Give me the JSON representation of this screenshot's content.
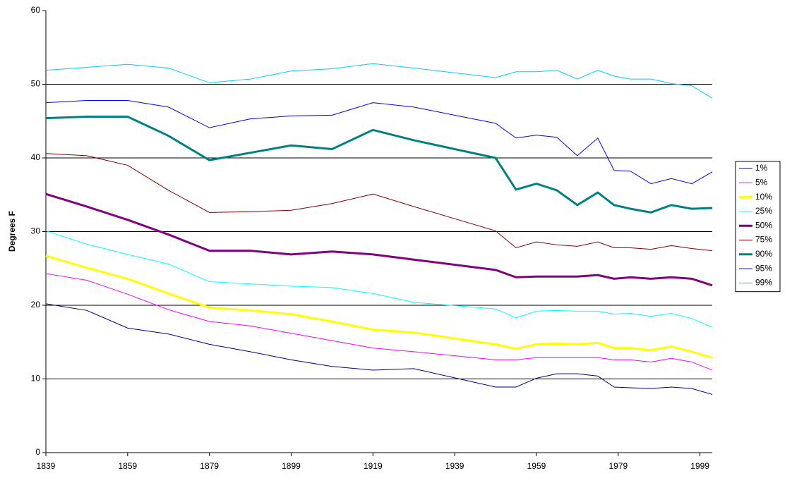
{
  "chart_data": {
    "type": "line",
    "y_label": "Degrees F",
    "x": [
      1839,
      1849,
      1859,
      1869,
      1879,
      1889,
      1899,
      1909,
      1919,
      1929,
      1949,
      1954,
      1959,
      1964,
      1969,
      1974,
      1978,
      1982,
      1987,
      1992,
      1997,
      2002
    ],
    "xlim": [
      1839,
      2002
    ],
    "xticks": [
      1839,
      1859,
      1879,
      1899,
      1919,
      1939,
      1959,
      1979,
      1999
    ],
    "ylim": [
      0,
      60
    ],
    "yticks": [
      0,
      10,
      20,
      30,
      40,
      50,
      60
    ],
    "grid": true,
    "legend": "right",
    "series": [
      {
        "name": "1%",
        "color": "#000080",
        "width": 1,
        "values": [
          20.2,
          19.3,
          16.9,
          16.1,
          14.7,
          13.7,
          12.6,
          11.7,
          11.2,
          11.4,
          8.9,
          8.9,
          10.1,
          10.7,
          10.7,
          10.4,
          8.9,
          8.8,
          8.7,
          8.9,
          8.7,
          7.9
        ]
      },
      {
        "name": "5%",
        "color": "#ff00ff",
        "width": 1,
        "values": [
          24.3,
          23.4,
          21.5,
          19.4,
          17.8,
          17.2,
          16.2,
          15.2,
          14.2,
          13.7,
          12.6,
          12.6,
          12.9,
          12.9,
          12.9,
          12.9,
          12.6,
          12.6,
          12.3,
          12.8,
          12.3,
          11.2
        ]
      },
      {
        "name": "10%",
        "color": "#ffff00",
        "width": 3,
        "values": [
          26.7,
          25.1,
          23.6,
          21.6,
          19.7,
          19.3,
          18.8,
          17.8,
          16.7,
          16.3,
          14.7,
          14.1,
          14.7,
          14.8,
          14.7,
          14.9,
          14.2,
          14.2,
          13.9,
          14.4,
          13.7,
          12.9
        ]
      },
      {
        "name": "25%",
        "color": "#00ffff",
        "width": 1,
        "values": [
          30.1,
          28.3,
          26.9,
          25.6,
          23.2,
          22.9,
          22.6,
          22.4,
          21.6,
          20.4,
          19.5,
          18.3,
          19.2,
          19.3,
          19.2,
          19.2,
          18.8,
          18.9,
          18.5,
          18.9,
          18.2,
          17.0
        ]
      },
      {
        "name": "50%",
        "color": "#800080",
        "width": 3,
        "values": [
          35.1,
          33.4,
          31.6,
          29.6,
          27.4,
          27.4,
          26.9,
          27.3,
          26.9,
          26.2,
          24.8,
          23.8,
          23.9,
          23.9,
          23.9,
          24.1,
          23.6,
          23.8,
          23.6,
          23.8,
          23.6,
          22.7
        ]
      },
      {
        "name": "75%",
        "color": "#800000",
        "width": 1,
        "values": [
          40.6,
          40.3,
          39.0,
          35.6,
          32.6,
          32.7,
          32.9,
          33.8,
          35.1,
          33.4,
          30.1,
          27.8,
          28.6,
          28.2,
          28.0,
          28.6,
          27.8,
          27.8,
          27.6,
          28.1,
          27.7,
          27.4
        ]
      },
      {
        "name": "90%",
        "color": "#008080",
        "width": 3,
        "values": [
          45.4,
          45.6,
          45.6,
          43.0,
          39.7,
          40.7,
          41.7,
          41.2,
          43.8,
          42.4,
          40.0,
          35.7,
          36.5,
          35.6,
          33.6,
          35.3,
          33.6,
          33.1,
          32.6,
          33.6,
          33.1,
          33.2
        ]
      },
      {
        "name": "95%",
        "color": "#0000ff",
        "width": 1,
        "values": [
          47.5,
          47.8,
          47.8,
          46.9,
          44.1,
          45.3,
          45.7,
          45.8,
          47.5,
          46.9,
          44.7,
          42.7,
          43.1,
          42.8,
          40.3,
          42.7,
          38.3,
          38.2,
          36.5,
          37.2,
          36.5,
          38.1
        ]
      },
      {
        "name": "99%",
        "color": "#00ccff",
        "width": 1,
        "values": [
          51.9,
          52.3,
          52.7,
          52.2,
          50.2,
          50.7,
          51.8,
          52.1,
          52.8,
          52.2,
          50.9,
          51.7,
          51.7,
          51.9,
          50.7,
          51.9,
          51.1,
          50.7,
          50.7,
          50.1,
          49.8,
          48.1
        ]
      }
    ]
  }
}
